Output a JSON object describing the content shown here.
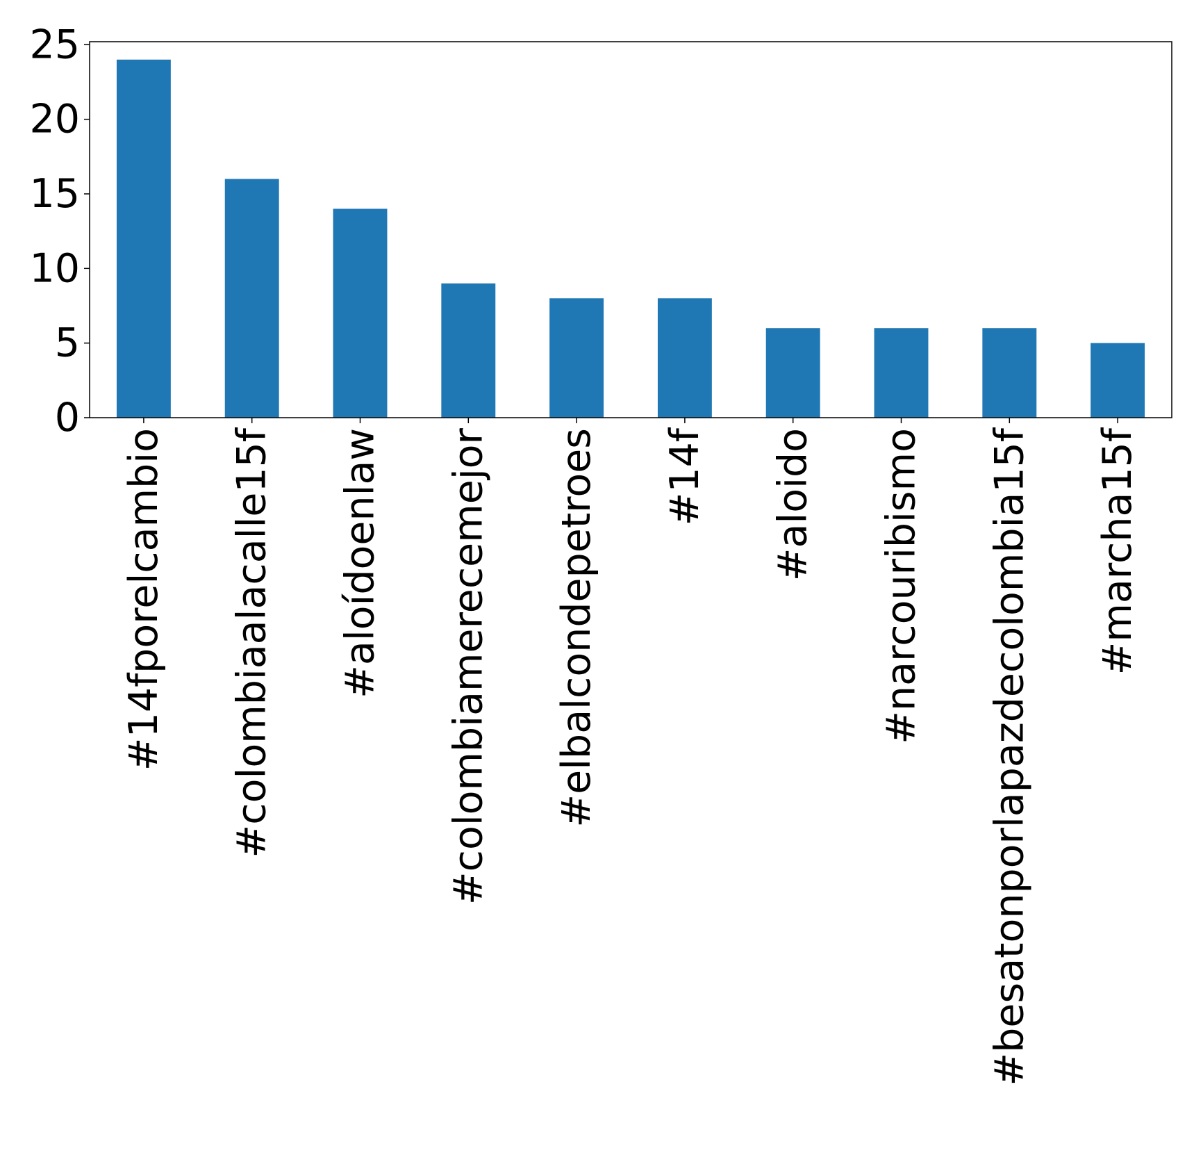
{
  "chart_data": {
    "type": "bar",
    "categories": [
      "#14fporelcambio",
      "#colombiaalacalle15f",
      "#aloídoenlaw",
      "#colombiamerecemejor",
      "#elbalcondepetroes",
      "#14f",
      "#aloido",
      "#narcouribismo",
      "#besatonporlapazdecolombia15f",
      "#marcha15f"
    ],
    "values": [
      24,
      16,
      14,
      9,
      8,
      8,
      6,
      6,
      6,
      5
    ],
    "ylim": [
      0,
      25.2
    ],
    "yticks": [
      0,
      5,
      10,
      15,
      20,
      25
    ],
    "xlabel_rotation": "vertical",
    "grid": false,
    "legend": "none",
    "colors": {
      "bar": "#1f77b4",
      "axis": "#000000",
      "background": "#ffffff"
    }
  }
}
